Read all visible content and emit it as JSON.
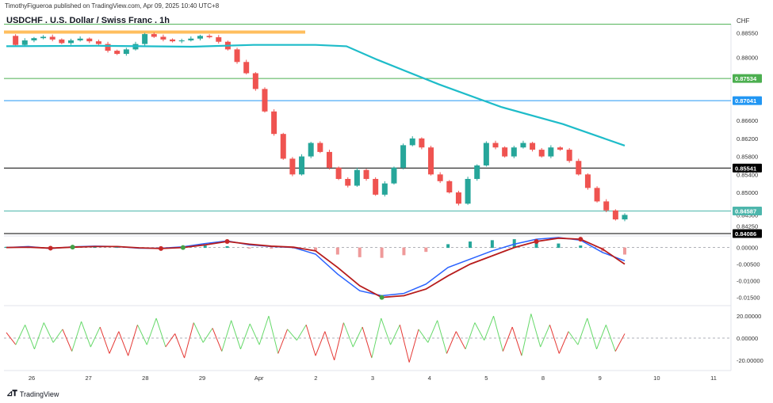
{
  "header": {
    "published": "TimothyFigueroa published on TradingView.com, Apr 09, 2025 10:40 UTC+8",
    "symbol": "USDCHF . U.S. Dollar / Swiss Franc . 1h",
    "currency": "CHF"
  },
  "footer": {
    "brand": "TradingView",
    "logo": "tradingview-logo-icon"
  },
  "colors": {
    "up": "#26a69a",
    "down": "#ef5350",
    "ma": "#1ebcc9",
    "green_line": "#4caf50",
    "blue_line": "#2196f3",
    "black_line": "#000000",
    "orange_zone": "#ffb74d",
    "macd_blue": "#2962ff",
    "macd_red": "#b71c1c",
    "macd_green": "#43a047",
    "osc_green": "#66d96a",
    "osc_red": "#e53935"
  },
  "chart_data": [
    {
      "type": "candlestick",
      "panel": "price",
      "title": "USDCHF . U.S. Dollar / Swiss Franc . 1h",
      "y_ticks": [
        "0.88550",
        "0.88000",
        "0.87500",
        "0.87000",
        "0.86600",
        "0.86200",
        "0.85800",
        "0.85400",
        "0.85000",
        "0.84500",
        "0.84250"
      ],
      "ylim": [
        0.8405,
        0.8875
      ],
      "x_ticks": [
        "26",
        "27",
        "28",
        "29",
        "Apr",
        "2",
        "3",
        "4",
        "5",
        "8",
        "9",
        "10",
        "11"
      ],
      "levels": [
        {
          "value": 0.8874,
          "color": "green",
          "label": ""
        },
        {
          "value": 0.87534,
          "color": "green",
          "label": "0.87534"
        },
        {
          "value": 0.87041,
          "color": "blue",
          "label": "0.87041"
        },
        {
          "value": 0.85541,
          "color": "black",
          "label": "0.85541"
        },
        {
          "value": 0.84587,
          "color": "teal",
          "label": "0.84587"
        },
        {
          "value": 0.84086,
          "color": "black",
          "label": "0.84086"
        }
      ],
      "resistance_zone": [
        0.8853,
        0.886
      ],
      "path": [
        0.8848,
        0.8828,
        0.8838,
        0.8843,
        0.8846,
        0.884,
        0.8832,
        0.8838,
        0.8842,
        0.8836,
        0.883,
        0.8815,
        0.8808,
        0.8818,
        0.883,
        0.8852,
        0.8846,
        0.884,
        0.8836,
        0.8838,
        0.8842,
        0.8848,
        0.8845,
        0.8835,
        0.8818,
        0.879,
        0.8765,
        0.873,
        0.868,
        0.863,
        0.8575,
        0.854,
        0.858,
        0.861,
        0.859,
        0.8555,
        0.853,
        0.8515,
        0.855,
        0.853,
        0.8495,
        0.852,
        0.8555,
        0.8605,
        0.862,
        0.86,
        0.854,
        0.8525,
        0.85,
        0.8475,
        0.853,
        0.856,
        0.861,
        0.86,
        0.858,
        0.86,
        0.861,
        0.8595,
        0.858,
        0.86,
        0.8595,
        0.857,
        0.854,
        0.851,
        0.848,
        0.846,
        0.844,
        0.845
      ],
      "moving_average": [
        {
          "x": 0.0,
          "y": 0.8825
        },
        {
          "x": 0.15,
          "y": 0.8826
        },
        {
          "x": 0.3,
          "y": 0.8824
        },
        {
          "x": 0.4,
          "y": 0.8828
        },
        {
          "x": 0.5,
          "y": 0.8828
        },
        {
          "x": 0.55,
          "y": 0.8825
        },
        {
          "x": 0.6,
          "y": 0.8795
        },
        {
          "x": 0.7,
          "y": 0.874
        },
        {
          "x": 0.8,
          "y": 0.869
        },
        {
          "x": 0.9,
          "y": 0.8652
        },
        {
          "x": 1.0,
          "y": 0.8604
        }
      ]
    },
    {
      "type": "line",
      "panel": "macd",
      "y_ticks": [
        "0.00000",
        "-0.00500",
        "-0.01000",
        "-0.01500"
      ],
      "ylim": [
        -0.017,
        0.003
      ],
      "series": [
        {
          "values": [
            0.0,
            0.0003,
            -0.0003,
            0.0002,
            0.0004,
            0.0003,
            -0.0002,
            -0.0002,
            0.0002,
            0.0012,
            0.002,
            0.0008,
            0.0003,
            0.0,
            -0.002,
            -0.008,
            -0.013,
            -0.0145,
            -0.0138,
            -0.011,
            -0.006,
            -0.0035,
            -0.001,
            0.001,
            0.0025,
            0.003,
            0.0022,
            -0.0015,
            -0.004
          ]
        },
        {
          "values": [
            0.0,
            0.0001,
            -0.0002,
            0.0001,
            0.0003,
            0.0003,
            -0.0001,
            -0.0003,
            0.0,
            0.0008,
            0.0018,
            0.001,
            0.0004,
            0.0001,
            -0.001,
            -0.006,
            -0.0115,
            -0.015,
            -0.0145,
            -0.0125,
            -0.0085,
            -0.005,
            -0.0025,
            0.0,
            0.0018,
            0.0028,
            0.0025,
            -0.0005,
            -0.005
          ]
        }
      ],
      "histogram": [
        0.0002,
        0.0001,
        -0.0002,
        0.0001,
        0.0002,
        0.0001,
        -0.0002,
        0.0001,
        0.0003,
        0.0006,
        0.0004,
        -0.0002,
        -0.0002,
        -0.0002,
        -0.0008,
        -0.002,
        -0.0028,
        -0.003,
        -0.0022,
        -0.0012,
        0.001,
        0.0018,
        0.0022,
        0.0025,
        0.0018,
        0.0012,
        0.0006,
        -0.001,
        -0.002
      ],
      "markers": [
        {
          "i": 2,
          "kind": "red"
        },
        {
          "i": 3,
          "kind": "green"
        },
        {
          "i": 7,
          "kind": "red"
        },
        {
          "i": 8,
          "kind": "green"
        },
        {
          "i": 10,
          "kind": "red"
        },
        {
          "i": 17,
          "kind": "green"
        },
        {
          "i": 24,
          "kind": "red"
        },
        {
          "i": 26,
          "kind": "red"
        }
      ]
    },
    {
      "type": "line",
      "panel": "oscillator",
      "y_ticks": [
        "20.00000",
        "0.00000",
        "-20.00000"
      ],
      "ylim": [
        -28,
        28
      ],
      "values": [
        5,
        -6,
        12,
        -10,
        14,
        -4,
        8,
        -12,
        15,
        -8,
        10,
        -14,
        6,
        -16,
        12,
        -6,
        18,
        -8,
        4,
        -18,
        14,
        -4,
        9,
        -12,
        16,
        -10,
        13,
        -6,
        20,
        -14,
        8,
        -2,
        12,
        -16,
        6,
        -20,
        14,
        -8,
        10,
        -18,
        18,
        -6,
        12,
        -22,
        8,
        -4,
        16,
        -14,
        6,
        -10,
        14,
        -2,
        20,
        -12,
        10,
        -16,
        22,
        -8,
        12,
        -14,
        6,
        -6,
        18,
        -10,
        12,
        -12,
        4
      ]
    }
  ]
}
